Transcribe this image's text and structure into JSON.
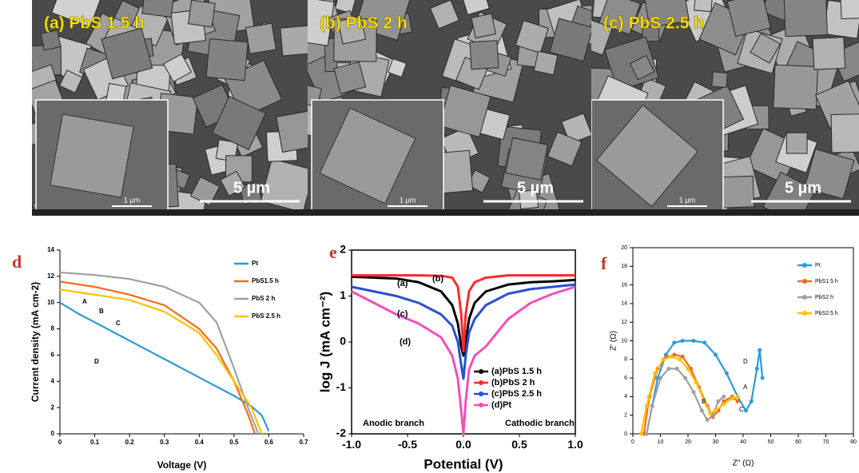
{
  "images": [
    {
      "label": "(a) PbS 1.5 h",
      "scale": "5 µm",
      "inset_scale": "1 µm"
    },
    {
      "label": "(b) PbS 2 h",
      "scale": "5 µm",
      "inset_scale": "1 µm"
    },
    {
      "label": "(c) PbS 2.5 h",
      "scale": "5 µm",
      "inset_scale": "1 µm"
    }
  ],
  "chart_data": [
    {
      "type": "line",
      "panel": "d",
      "xlabel": "Voltage (V)",
      "ylabel": "Current density (mA cm-2)",
      "xlim": [
        0,
        0.7
      ],
      "xticks": [
        0,
        0.1,
        0.2,
        0.3,
        0.4,
        0.5,
        0.6,
        0.7
      ],
      "ylim": [
        0,
        14
      ],
      "yticks": [
        0,
        2,
        4,
        6,
        8,
        10,
        12,
        14
      ],
      "legend": "upper right",
      "frame": false,
      "markers": false,
      "annotations": [
        "A",
        "B",
        "C",
        "D"
      ],
      "series": [
        {
          "name": "Pt",
          "color": "#2e9bd6",
          "x": [
            0,
            0.05,
            0.1,
            0.15,
            0.2,
            0.25,
            0.3,
            0.35,
            0.4,
            0.45,
            0.5,
            0.55,
            0.58,
            0.6
          ],
          "values": [
            10,
            9.2,
            8.5,
            7.8,
            7.1,
            6.4,
            5.7,
            5,
            4.3,
            3.6,
            2.9,
            2.1,
            1.4,
            0.2
          ]
        },
        {
          "name": "PbS1.5 h",
          "color": "#f26b21",
          "x": [
            0,
            0.1,
            0.2,
            0.3,
            0.4,
            0.45,
            0.5,
            0.54,
            0.56
          ],
          "values": [
            11.6,
            11.2,
            10.6,
            9.8,
            8,
            6.5,
            4,
            1.5,
            0
          ]
        },
        {
          "name": "PbS 2 h",
          "color": "#a0a0a0",
          "x": [
            0,
            0.1,
            0.2,
            0.3,
            0.4,
            0.45,
            0.5,
            0.54,
            0.57
          ],
          "values": [
            12.3,
            12.1,
            11.8,
            11.2,
            10,
            8.5,
            5,
            2,
            0
          ]
        },
        {
          "name": "PbS 2.5 h",
          "color": "#ffc000",
          "x": [
            0,
            0.1,
            0.2,
            0.3,
            0.4,
            0.45,
            0.5,
            0.55,
            0.58
          ],
          "values": [
            11,
            10.6,
            10.2,
            9.3,
            7.7,
            6,
            4,
            2,
            0
          ]
        }
      ]
    },
    {
      "type": "line",
      "panel": "e",
      "xlabel": "Potential (V)",
      "ylabel": "log J (mA cm⁻²)",
      "xlim": [
        -1,
        1
      ],
      "xticks": [
        {
          "value": -1,
          "label": "-1.0"
        },
        -0.5,
        {
          "value": 0,
          "label": "0.0"
        },
        0.5,
        {
          "value": 1,
          "label": "1.0"
        }
      ],
      "ylim": [
        -2,
        2
      ],
      "yticks": [
        -2,
        -1,
        0,
        1,
        2
      ],
      "legend": "lower right",
      "frame": true,
      "markers": false,
      "annotations": [
        "(a)",
        "(b)",
        "(c)",
        "(d)",
        "Anodic branch",
        "Cathodic branch"
      ],
      "series": [
        {
          "name": "(a)PbS 1.5 h",
          "color": "#000000",
          "x": [
            -1,
            -0.8,
            -0.6,
            -0.4,
            -0.2,
            -0.1,
            -0.05,
            -0.02,
            0,
            0.02,
            0.05,
            0.1,
            0.2,
            0.4,
            0.6,
            0.8,
            1
          ],
          "values": [
            1.42,
            1.4,
            1.38,
            1.3,
            1.1,
            0.8,
            0.4,
            -0.1,
            -0.3,
            0,
            0.5,
            0.85,
            1.1,
            1.25,
            1.3,
            1.32,
            1.35
          ]
        },
        {
          "name": "(b)PbS 2 h",
          "color": "#ff2a2a",
          "x": [
            -1,
            -0.8,
            -0.6,
            -0.4,
            -0.2,
            -0.1,
            -0.05,
            -0.02,
            0,
            0.02,
            0.05,
            0.1,
            0.2,
            0.4,
            0.6,
            0.8,
            1
          ],
          "values": [
            1.45,
            1.45,
            1.45,
            1.45,
            1.44,
            1.4,
            1.2,
            0.6,
            -0.2,
            0.6,
            1.1,
            1.3,
            1.4,
            1.45,
            1.45,
            1.45,
            1.45
          ]
        },
        {
          "name": "(c)PbS 2.5 h",
          "color": "#2a4fd0",
          "x": [
            -1,
            -0.8,
            -0.6,
            -0.4,
            -0.2,
            -0.1,
            -0.05,
            -0.02,
            0,
            0.02,
            0.05,
            0.1,
            0.2,
            0.4,
            0.6,
            0.8,
            1
          ],
          "values": [
            1.2,
            1.1,
            1,
            0.85,
            0.6,
            0.35,
            0,
            -0.5,
            -0.8,
            -0.3,
            0.2,
            0.5,
            0.8,
            1.05,
            1.15,
            1.2,
            1.25
          ]
        },
        {
          "name": "(d)Pt",
          "color": "#f050b8",
          "x": [
            -1,
            -0.8,
            -0.6,
            -0.4,
            -0.2,
            -0.1,
            -0.05,
            -0.02,
            0,
            0.02,
            0.05,
            0.1,
            0.2,
            0.4,
            0.6,
            0.8,
            1
          ],
          "values": [
            1.1,
            0.85,
            0.6,
            0.4,
            0.1,
            -0.3,
            -0.8,
            -1.5,
            -2,
            -1.3,
            -0.6,
            -0.3,
            -0.1,
            0.5,
            0.85,
            1.05,
            1.2
          ]
        }
      ]
    },
    {
      "type": "line",
      "panel": "f",
      "xlabel": "Z'' (Ω)",
      "ylabel": "Z' (Ω)",
      "xlim": [
        0,
        80
      ],
      "xticks": [
        0,
        10,
        20,
        30,
        40,
        50,
        60,
        70,
        80
      ],
      "ylim": [
        0,
        20
      ],
      "yticks": [
        0,
        2,
        4,
        6,
        8,
        10,
        12,
        14,
        16,
        18,
        20
      ],
      "legend": "upper right",
      "frame": true,
      "markers": true,
      "annotations": [
        "D",
        "A",
        "C",
        "B"
      ],
      "series": [
        {
          "name": "Pt",
          "color": "#2e9bd6",
          "x": [
            5,
            7,
            9,
            12,
            15,
            18,
            22,
            26,
            30,
            34,
            38,
            41,
            43,
            45,
            46,
            47
          ],
          "values": [
            0,
            3,
            6,
            8.5,
            9.8,
            10,
            10,
            9.8,
            8.5,
            6.5,
            4,
            2.5,
            3.5,
            7,
            9,
            6
          ]
        },
        {
          "name": "PbS1.5 h",
          "color": "#f26b21",
          "x": [
            4,
            6,
            9,
            12,
            15,
            18,
            21,
            24,
            27,
            29,
            31,
            33,
            36,
            38
          ],
          "values": [
            0,
            4,
            7,
            8.2,
            8.5,
            8.3,
            7,
            5,
            3,
            1.8,
            2.5,
            3.5,
            4,
            3.5
          ]
        },
        {
          "name": "PbS2 h",
          "color": "#a0a0a0",
          "x": [
            5,
            7,
            10,
            13,
            16,
            19,
            22,
            25,
            27,
            29,
            31,
            33
          ],
          "values": [
            0,
            3,
            6,
            7,
            7,
            6,
            4.5,
            2.5,
            1.5,
            2,
            3.5,
            4
          ]
        },
        {
          "name": "PbS2.5 h",
          "color": "#ffc000",
          "x": [
            3,
            5,
            8,
            11,
            14,
            17,
            20,
            23,
            26,
            28,
            30,
            33,
            36,
            38
          ],
          "values": [
            0,
            3,
            6.5,
            8,
            8.3,
            8,
            7,
            5.5,
            3.5,
            2.2,
            2.5,
            3.2,
            3.8,
            4
          ]
        }
      ]
    }
  ]
}
